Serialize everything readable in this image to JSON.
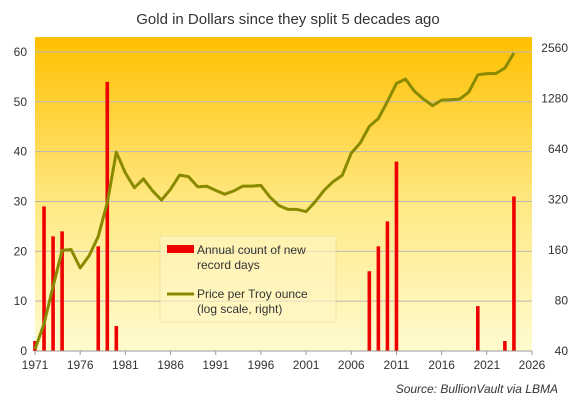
{
  "chart_data": {
    "type": "bar",
    "title": "Gold in Dollars since they split 5 decades ago",
    "source": "Source:  BullionVault via  LBMA",
    "x_ticks": [
      "1971",
      "1976",
      "1981",
      "1986",
      "1991",
      "1996",
      "2001",
      "2006",
      "2011",
      "2016",
      "2021",
      "2026"
    ],
    "x_range": [
      1971,
      2026
    ],
    "y_left": {
      "range": [
        0,
        63
      ],
      "ticks": [
        "0",
        "10",
        "20",
        "30",
        "40",
        "50",
        "60"
      ]
    },
    "y_right": {
      "scale": "log2",
      "range": [
        40,
        2972
      ],
      "ticks": [
        "40",
        "80",
        "160",
        "320",
        "640",
        "1280",
        "2560"
      ]
    },
    "grid": true,
    "legend": {
      "placement": "center-left",
      "bar_label_line1": "Annual count of new",
      "bar_label_line2": "record days",
      "line_label_line1": "Price per Troy ounce",
      "line_label_line2": "(log scale, right)"
    },
    "series": [
      {
        "name": "Annual count of new record days",
        "axis": "left",
        "type": "bar",
        "color": "#ee0000",
        "x": [
          1971,
          1972,
          1973,
          1974,
          1978,
          1979,
          1980,
          2008,
          2009,
          2010,
          2011,
          2020,
          2023,
          2024
        ],
        "values": [
          2,
          29,
          23,
          24,
          21,
          54,
          5,
          16,
          21,
          26,
          38,
          9,
          2,
          31
        ]
      },
      {
        "name": "Price per Troy ounce (log scale, right)",
        "axis": "right",
        "type": "line",
        "color": "#8a8a00",
        "x": [
          1971,
          1972,
          1973,
          1974,
          1975,
          1976,
          1977,
          1978,
          1979,
          1980,
          1981,
          1982,
          1983,
          1984,
          1985,
          1986,
          1987,
          1988,
          1989,
          1990,
          1991,
          1992,
          1993,
          1994,
          1995,
          1996,
          1997,
          1998,
          1999,
          2000,
          2001,
          2002,
          2003,
          2004,
          2005,
          2006,
          2007,
          2008,
          2009,
          2010,
          2011,
          2012,
          2013,
          2014,
          2015,
          2016,
          2017,
          2018,
          2019,
          2020,
          2021,
          2022,
          2023,
          2024
        ],
        "values": [
          41,
          58,
          97,
          159,
          161,
          125,
          148,
          193,
          307,
          612,
          460,
          376,
          424,
          361,
          317,
          368,
          447,
          437,
          381,
          383,
          362,
          344,
          360,
          384,
          384,
          388,
          331,
          294,
          279,
          279,
          271,
          310,
          363,
          409,
          445,
          604,
          695,
          872,
          972,
          1225,
          1572,
          1669,
          1411,
          1266,
          1160,
          1251,
          1257,
          1268,
          1393,
          1770,
          1799,
          1800,
          1943,
          2386
        ]
      }
    ]
  }
}
